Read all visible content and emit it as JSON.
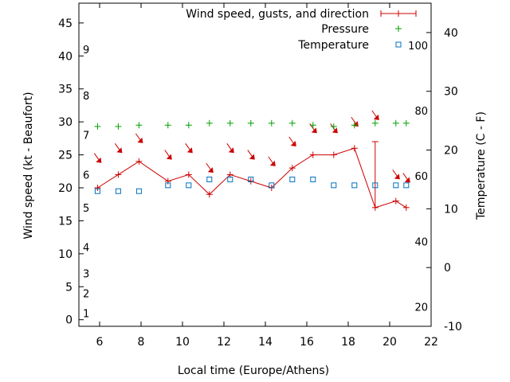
{
  "chart_data": {
    "type": "line",
    "xlabel": "Local time (Europe/Athens)",
    "ylabel_left": "Wind speed (kt - Beaufort)",
    "ylabel_right": "Temperature (C - F)",
    "x_range": [
      5,
      22
    ],
    "x_ticks": [
      "6",
      "8",
      "10",
      "12",
      "14",
      "16",
      "18",
      "20",
      "22"
    ],
    "y_left_range": [
      -1,
      48
    ],
    "y_left_ticks": [
      "0",
      "5",
      "10",
      "15",
      "20",
      "25",
      "30",
      "35",
      "40",
      "45"
    ],
    "y_right_range": [
      -10,
      45
    ],
    "y_right_ticks": [
      "-10",
      "0",
      "10",
      "20",
      "30",
      "40"
    ],
    "fahrenheit_labels": [
      {
        "text": "20",
        "celsius": -6.7
      },
      {
        "text": "40",
        "celsius": 4.4
      },
      {
        "text": "60",
        "celsius": 15.6
      },
      {
        "text": "80",
        "celsius": 26.7
      },
      {
        "text": "100",
        "celsius": 37.8
      }
    ],
    "beaufort_labels": [
      {
        "text": "1",
        "knots": 1
      },
      {
        "text": "2",
        "knots": 4
      },
      {
        "text": "3",
        "knots": 7
      },
      {
        "text": "4",
        "knots": 11
      },
      {
        "text": "5",
        "knots": 17
      },
      {
        "text": "6",
        "knots": 22
      },
      {
        "text": "7",
        "knots": 28
      },
      {
        "text": "8",
        "knots": 34
      },
      {
        "text": "9",
        "knots": 41
      }
    ],
    "legend": {
      "wind": "Wind speed, gusts, and direction",
      "pressure": "Pressure",
      "temperature": "Temperature"
    },
    "colors": {
      "wind": "#cc0000",
      "pressure": "#00a000",
      "temperature": "#0070c0"
    },
    "wind": {
      "x": [
        5.9,
        6.9,
        7.9,
        9.3,
        10.3,
        11.3,
        12.3,
        13.3,
        14.3,
        15.3,
        16.3,
        17.3,
        18.3,
        19.3,
        20.3,
        20.8
      ],
      "y": [
        20,
        22,
        24,
        21,
        22,
        19,
        22,
        21,
        20,
        23,
        25,
        25,
        26,
        17,
        18,
        17
      ],
      "gusts": [
        {
          "x": 19.3,
          "low": 17,
          "high": 27
        }
      ]
    },
    "wind_direction_arrows": {
      "x": [
        5.9,
        6.9,
        7.9,
        9.3,
        10.3,
        11.3,
        12.3,
        13.3,
        14.3,
        15.3,
        16.3,
        17.3,
        18.3,
        19.3,
        20.3,
        20.8
      ],
      "y": [
        24.5,
        26,
        27.5,
        25,
        26,
        23,
        26,
        25,
        24,
        27,
        29,
        29,
        30,
        31,
        22,
        21.5
      ]
    },
    "pressure": {
      "x": [
        5.9,
        6.9,
        7.9,
        9.3,
        10.3,
        11.3,
        12.3,
        13.3,
        14.3,
        15.3,
        16.3,
        17.3,
        18.3,
        19.3,
        20.3,
        20.8
      ],
      "y": [
        29.3,
        29.3,
        29.5,
        29.5,
        29.5,
        29.8,
        29.8,
        29.8,
        29.8,
        29.8,
        29.5,
        29.3,
        29.5,
        29.8,
        29.8,
        29.8
      ]
    },
    "temperature": {
      "x": [
        5.9,
        6.9,
        7.9,
        9.3,
        10.3,
        11.3,
        12.3,
        13.3,
        14.3,
        15.3,
        16.3,
        17.3,
        18.3,
        19.3,
        20.3,
        20.8
      ],
      "y_celsius": [
        13,
        13,
        13,
        14,
        14,
        15,
        15,
        15,
        14,
        15,
        15,
        14,
        14,
        14,
        14,
        14
      ]
    }
  }
}
